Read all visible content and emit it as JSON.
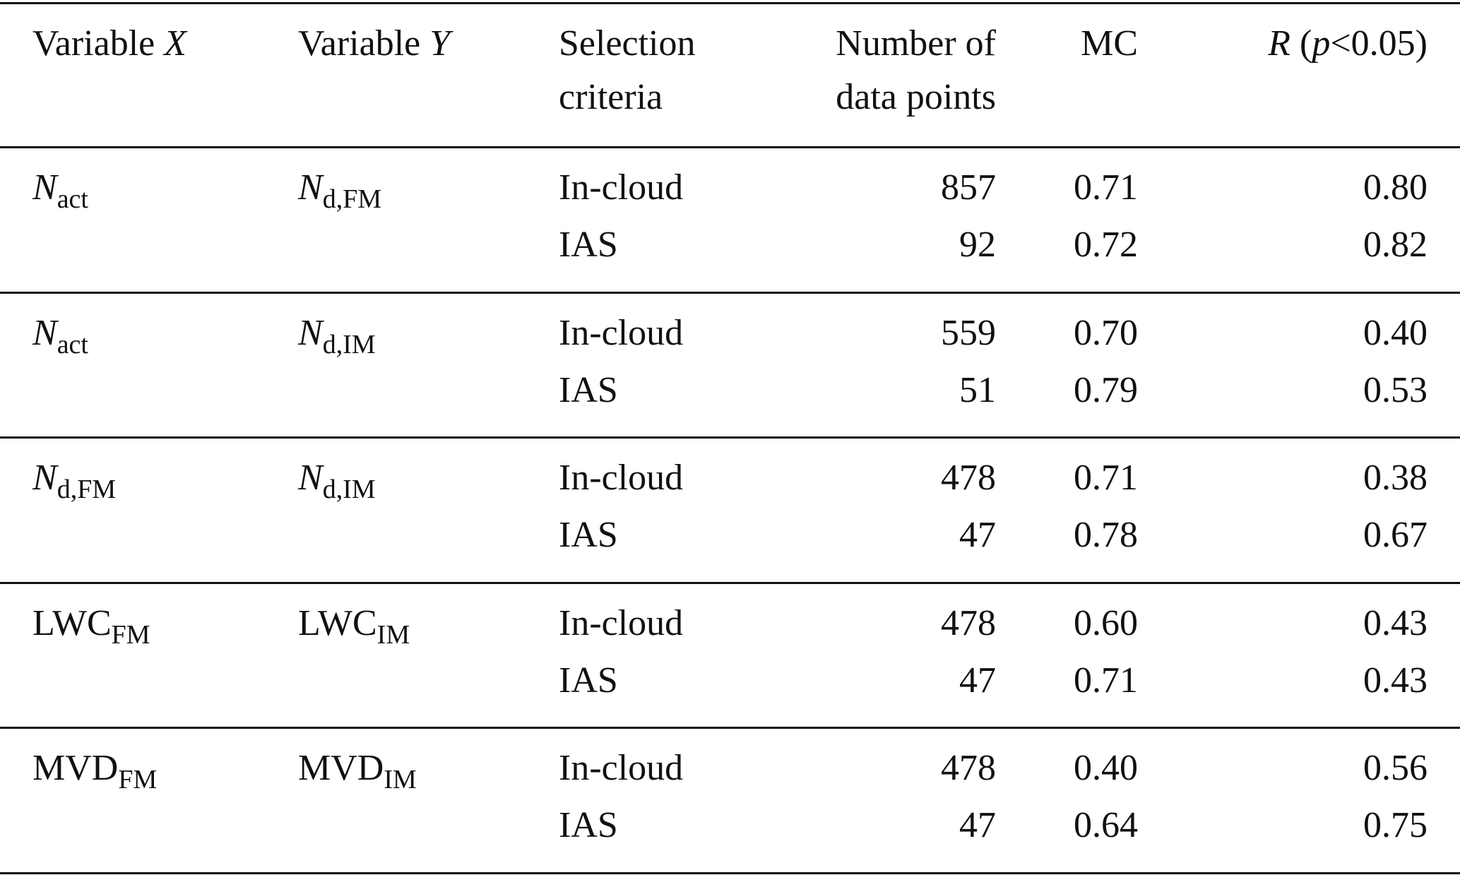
{
  "table": {
    "header": [
      [
        [
          {
            "t": "Variable "
          },
          {
            "t": "X",
            "i": true
          }
        ]
      ],
      [
        [
          {
            "t": "Variable "
          },
          {
            "t": "Y",
            "i": true
          }
        ]
      ],
      [
        [
          {
            "t": "Selection"
          }
        ],
        [
          {
            "t": "criteria"
          }
        ]
      ],
      [
        [
          {
            "t": "Number of"
          }
        ],
        [
          {
            "t": "data points"
          }
        ]
      ],
      [
        [
          {
            "t": "MC"
          }
        ]
      ],
      [
        [
          {
            "t": "R",
            "i": true
          },
          {
            "t": " ("
          },
          {
            "t": "p",
            "i": true
          },
          {
            "t": "<0.05)"
          }
        ]
      ]
    ],
    "groups": [
      {
        "x": {
          "base": "N",
          "sub": "act",
          "italic": true
        },
        "y": {
          "base": "N",
          "sub": "d,FM",
          "italic": true
        },
        "rows": [
          [
            "In-cloud",
            "857",
            "0.71",
            "0.80"
          ],
          [
            "IAS",
            "92",
            "0.72",
            "0.82"
          ]
        ]
      },
      {
        "x": {
          "base": "N",
          "sub": "act",
          "italic": true
        },
        "y": {
          "base": "N",
          "sub": "d,IM",
          "italic": true
        },
        "rows": [
          [
            "In-cloud",
            "559",
            "0.70",
            "0.40"
          ],
          [
            "IAS",
            "51",
            "0.79",
            "0.53"
          ]
        ]
      },
      {
        "x": {
          "base": "N",
          "sub": "d,FM",
          "italic": true
        },
        "y": {
          "base": "N",
          "sub": "d,IM",
          "italic": true
        },
        "rows": [
          [
            "In-cloud",
            "478",
            "0.71",
            "0.38"
          ],
          [
            "IAS",
            "47",
            "0.78",
            "0.67"
          ]
        ]
      },
      {
        "x": {
          "base": "LWC",
          "sub": "FM",
          "italic": false
        },
        "y": {
          "base": "LWC",
          "sub": "IM",
          "italic": false
        },
        "rows": [
          [
            "In-cloud",
            "478",
            "0.60",
            "0.43"
          ],
          [
            "IAS",
            "47",
            "0.71",
            "0.43"
          ]
        ]
      },
      {
        "x": {
          "base": "MVD",
          "sub": "FM",
          "italic": false
        },
        "y": {
          "base": "MVD",
          "sub": "IM",
          "italic": false
        },
        "rows": [
          [
            "In-cloud",
            "478",
            "0.40",
            "0.56"
          ],
          [
            "IAS",
            "47",
            "0.64",
            "0.75"
          ]
        ]
      }
    ]
  }
}
